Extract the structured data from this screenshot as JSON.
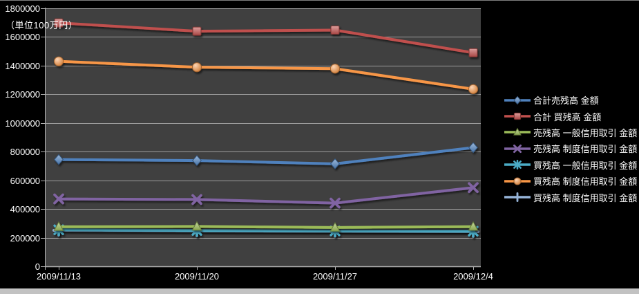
{
  "chart_data": {
    "type": "line",
    "title": "",
    "unit_label": "（単位100万円）",
    "categories": [
      "2009/11/13",
      "2009/11/20",
      "2009/11/27",
      "2009/12/4"
    ],
    "y_ticks": [
      "0",
      "200000",
      "400000",
      "600000",
      "800000",
      "1000000",
      "1200000",
      "1400000",
      "1600000",
      "1800000"
    ],
    "ylim": [
      0,
      1800000
    ],
    "grid": true,
    "legend_position": "right",
    "series": [
      {
        "name": "合計売残高 金額",
        "color": "#4F81BD",
        "marker": "diamond",
        "values": [
          745000,
          738000,
          715000,
          828000
        ]
      },
      {
        "name": "合計 買残高 金額",
        "color": "#C0504D",
        "marker": "square",
        "values": [
          1698000,
          1640000,
          1648000,
          1490000
        ]
      },
      {
        "name": "売残高 一般信用取引 金額",
        "color": "#9BBB59",
        "marker": "triangle",
        "values": [
          276000,
          278000,
          271000,
          277000
        ]
      },
      {
        "name": "売残高 制度信用取引 金額",
        "color": "#8064A2",
        "marker": "x",
        "values": [
          470000,
          466000,
          441000,
          549000
        ]
      },
      {
        "name": "買残高 一般信用取引 金額",
        "color": "#4BACC6",
        "marker": "asterisk",
        "values": [
          255000,
          250000,
          247000,
          245000
        ]
      },
      {
        "name": "買残高 制度信用取引 金額",
        "color": "#F79646",
        "marker": "circle",
        "values": [
          1430000,
          1389000,
          1379000,
          1236000
        ]
      },
      {
        "name": "買残高 制度信用取引 金額",
        "color": "#95B3D7",
        "marker": "plus",
        "values": [
          251000,
          247000,
          244000,
          242000
        ]
      }
    ],
    "colors": {
      "chart_bg": "#000000",
      "plot_bg": "#404040",
      "gridline": "#9E9E9E",
      "axis": "#B3B3B3",
      "text": "#FFFFFF",
      "top_border": "#7F7F7F",
      "bottom_strip": "#C2C2C2"
    }
  }
}
